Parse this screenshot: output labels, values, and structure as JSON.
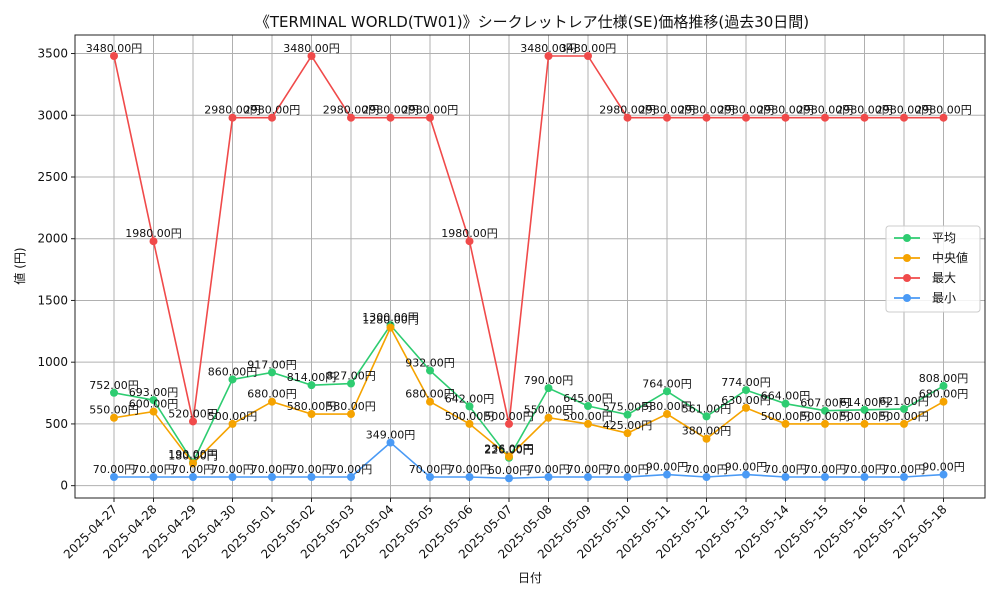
{
  "chart_data": {
    "type": "line",
    "title": "《TERMINAL WORLD(TW01)》シークレットレア仕様(SE)価格推移(過去30日間)",
    "xlabel": "日付",
    "ylabel": "値 (円)",
    "ylim": [
      -100,
      3650
    ],
    "yticks": [
      0,
      500,
      1000,
      1500,
      2000,
      2500,
      3000,
      3500
    ],
    "grid": true,
    "legend_position": "center-right",
    "value_suffix": "円",
    "categories": [
      "2025-04-27",
      "2025-04-28",
      "2025-04-29",
      "2025-04-30",
      "2025-05-01",
      "2025-05-02",
      "2025-05-03",
      "2025-05-04",
      "2025-05-05",
      "2025-05-06",
      "2025-05-07",
      "2025-05-08",
      "2025-05-09",
      "2025-05-10",
      "2025-05-11",
      "2025-05-12",
      "2025-05-13",
      "2025-05-14",
      "2025-05-15",
      "2025-05-16",
      "2025-05-17",
      "2025-05-18"
    ],
    "series": [
      {
        "name": "平均",
        "color": "#2ecc71",
        "values": [
          752,
          693,
          190,
          860,
          917,
          814,
          827,
          1300,
          932,
          642,
          226,
          790,
          645,
          575,
          764,
          561,
          774,
          664,
          607,
          614,
          621,
          808
        ]
      },
      {
        "name": "中央値",
        "color": "#f5a300",
        "values": [
          550,
          600,
          180,
          500,
          680,
          580,
          580,
          1280,
          680,
          500,
          236,
          550,
          500,
          425,
          580,
          380,
          630,
          500,
          500,
          500,
          500,
          680
        ]
      },
      {
        "name": "最大",
        "color": "#f04a4a",
        "values": [
          3480,
          1980,
          520,
          2980,
          2980,
          3480,
          2980,
          2980,
          2980,
          1980,
          500,
          3480,
          3480,
          2980,
          2980,
          2980,
          2980,
          2980,
          2980,
          2980,
          2980,
          2980
        ]
      },
      {
        "name": "最小",
        "color": "#4a9af5",
        "values": [
          70,
          70,
          70,
          70,
          70,
          70,
          70,
          349,
          70,
          70,
          60,
          70,
          70,
          70,
          90,
          70,
          90,
          70,
          70,
          70,
          70,
          90
        ]
      }
    ]
  }
}
